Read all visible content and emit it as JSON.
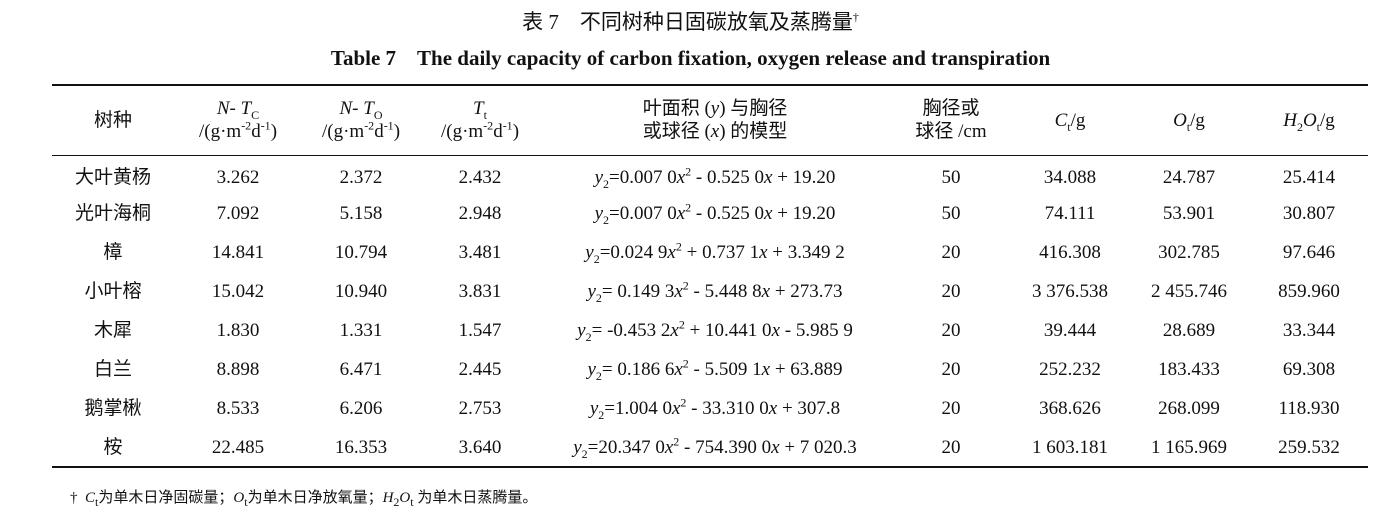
{
  "title": {
    "zh": [
      "表 7　不同树种日固碳放氧及蒸腾量",
      "†"
    ],
    "en": "Table 7　The daily capacity of carbon fixation, oxygen release and transpiration"
  },
  "table": {
    "header": [
      [
        "树种"
      ],
      [
        "N- T",
        "C",
        "/(g·m",
        "-2",
        "d",
        "-1",
        ")"
      ],
      [
        "N- T",
        "O",
        "/(g·m",
        "-2",
        "d",
        "-1",
        ")"
      ],
      [
        "T",
        "t",
        "/(g·m",
        "-2",
        "d",
        "-1",
        ")"
      ],
      [
        "叶面积 (",
        "y",
        ") 与胸径",
        "或球径 (",
        "x",
        ") 的模型"
      ],
      [
        "胸径或",
        "球径 /cm"
      ],
      [
        "C",
        "t",
        "/g"
      ],
      [
        "O",
        "t",
        "/g"
      ],
      [
        "H",
        "2",
        "O",
        "t",
        "/g"
      ]
    ],
    "rows": [
      [
        "大叶黄杨",
        "3.262",
        "2.372",
        "2.432",
        [
          "y",
          "2",
          "=0.007 0",
          "x",
          "2",
          " - 0.525 0",
          "x",
          " + 19.20"
        ],
        "50",
        "34.088",
        "24.787",
        "25.414"
      ],
      [
        "光叶海桐",
        "7.092",
        "5.158",
        "2.948",
        [
          "y",
          "2",
          "=0.007 0",
          "x",
          "2",
          " - 0.525 0",
          "x",
          " + 19.20"
        ],
        "50",
        "74.111",
        "53.901",
        "30.807"
      ],
      [
        "樟",
        "14.841",
        "10.794",
        "3.481",
        [
          "y",
          "2",
          "=0.024 9",
          "x",
          "2",
          " + 0.737 1",
          "x",
          " + 3.349 2"
        ],
        "20",
        "416.308",
        "302.785",
        "97.646"
      ],
      [
        "小叶榕",
        "15.042",
        "10.940",
        "3.831",
        [
          "y",
          "2",
          "= 0.149 3",
          "x",
          "2",
          " - 5.448 8",
          "x",
          " + 273.73"
        ],
        "20",
        "3 376.538",
        "2 455.746",
        "859.960"
      ],
      [
        "木犀",
        "1.830",
        "1.331",
        "1.547",
        [
          "y",
          "2",
          "= -0.453 2",
          "x",
          "2",
          " + 10.441 0",
          "x",
          " - 5.985 9"
        ],
        "20",
        "39.444",
        "28.689",
        "33.344"
      ],
      [
        "白兰",
        "8.898",
        "6.471",
        "2.445",
        [
          "y",
          "2",
          "= 0.186 6",
          "x",
          "2",
          " - 5.509 1",
          "x",
          " + 63.889"
        ],
        "20",
        "252.232",
        "183.433",
        "69.308"
      ],
      [
        "鹅掌楸",
        "8.533",
        "6.206",
        "2.753",
        [
          "y",
          "2",
          "=1.004 0",
          "x",
          "2",
          " - 33.310 0",
          "x",
          " + 307.8"
        ],
        "20",
        "368.626",
        "268.099",
        "118.930"
      ],
      [
        "桉",
        "22.485",
        "16.353",
        "3.640",
        [
          "y",
          "2",
          "=20.347 0",
          "x",
          "2",
          " - 754.390 0",
          "x",
          " + 7 020.3"
        ],
        "20",
        "1 603.181",
        "1 165.969",
        "259.532"
      ]
    ]
  },
  "footnote": [
    "†",
    "C",
    "t",
    "为单木日净固碳量；",
    "O",
    "t",
    "为单木日净放氧量；",
    "H",
    "2",
    "O",
    "t",
    " 为单木日蒸腾量。"
  ]
}
